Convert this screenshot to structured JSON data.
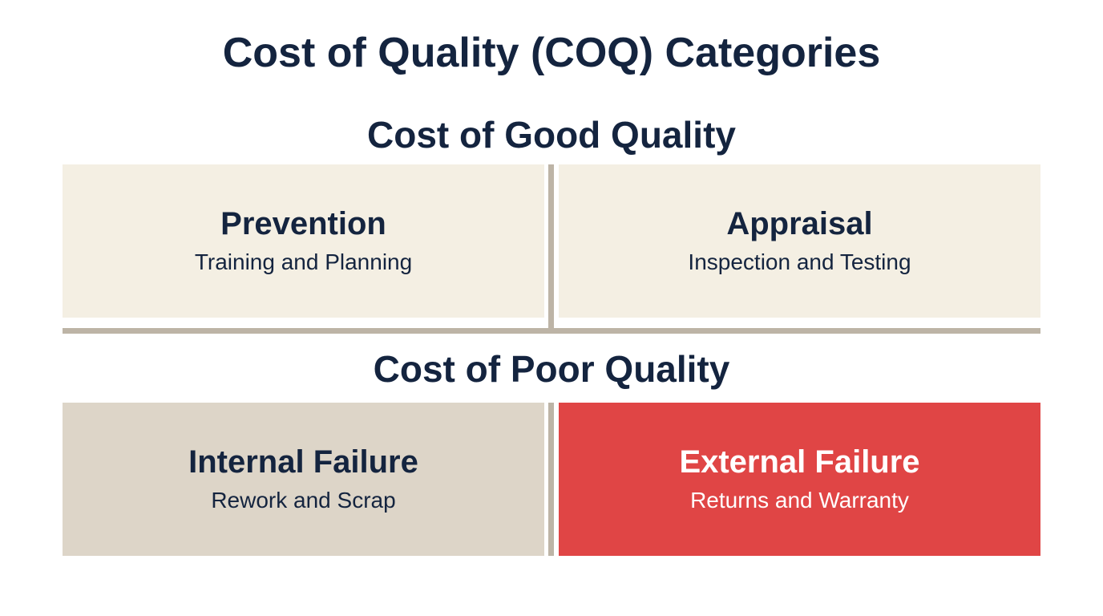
{
  "title": "Cost of Quality (COQ) Categories",
  "sections": [
    {
      "heading": "Cost of Good Quality",
      "boxes": [
        {
          "title": "Prevention",
          "subtitle": "Training and Planning"
        },
        {
          "title": "Appraisal",
          "subtitle": "Inspection and Testing"
        }
      ]
    },
    {
      "heading": "Cost of Poor Quality",
      "boxes": [
        {
          "title": "Internal Failure",
          "subtitle": "Rework and Scrap"
        },
        {
          "title": "External Failure",
          "subtitle": "Returns and Warranty"
        }
      ]
    }
  ]
}
